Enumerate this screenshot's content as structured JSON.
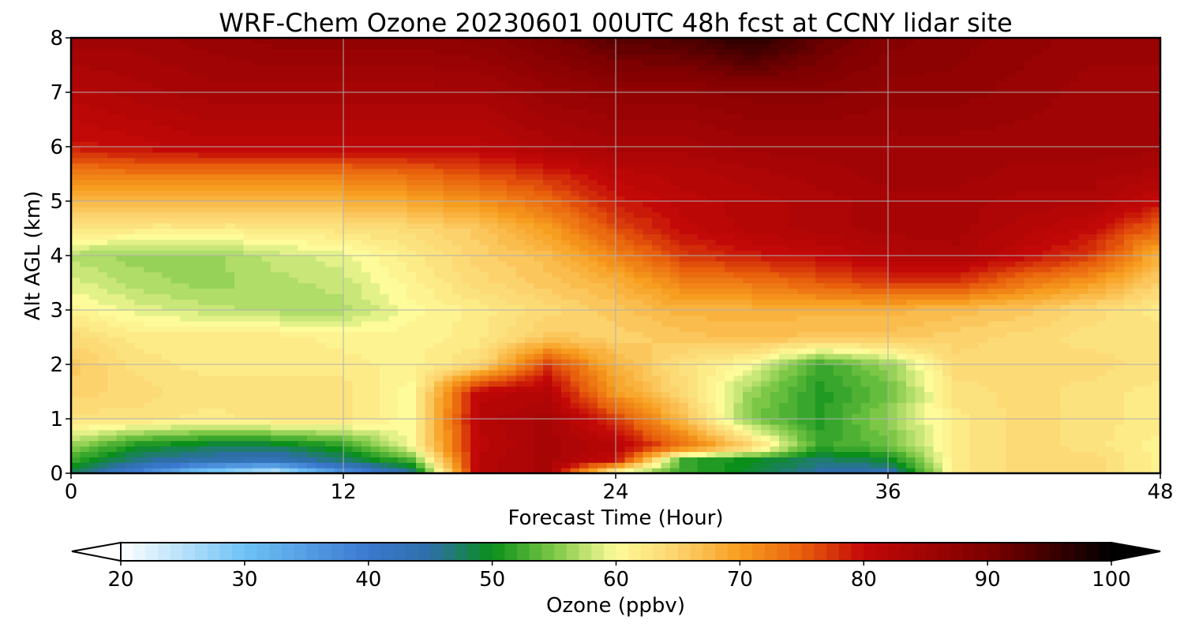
{
  "chart_data": {
    "type": "heatmap",
    "title": "WRF-Chem Ozone  20230601 00UTC 48h fcst at CCNY lidar site",
    "xlabel": "Forecast Time (Hour)",
    "ylabel": "Alt AGL (km)",
    "xlim": [
      0,
      48
    ],
    "ylim": [
      0,
      8
    ],
    "x_ticks": [
      "0",
      "12",
      "24",
      "36",
      "48"
    ],
    "y_ticks": [
      "0",
      "1",
      "2",
      "3",
      "4",
      "5",
      "6",
      "7",
      "8"
    ],
    "grid": true,
    "x_hours": [
      0,
      3,
      6,
      9,
      12,
      15,
      18,
      21,
      24,
      27,
      30,
      33,
      36,
      39,
      42,
      45,
      48
    ],
    "y_km": [
      0,
      0.25,
      0.5,
      1,
      1.5,
      2,
      2.5,
      3,
      3.5,
      4,
      4.5,
      5,
      5.5,
      6,
      7,
      8
    ],
    "ozone_ppbv": [
      [
        48,
        38,
        27,
        22,
        35,
        45,
        82,
        84,
        58,
        52,
        49,
        45,
        43,
        62,
        64,
        64,
        61
      ],
      [
        52,
        46,
        44,
        43,
        47,
        53,
        82,
        84,
        80,
        52,
        50,
        47,
        49,
        62,
        64,
        64,
        61
      ],
      [
        56,
        50,
        48,
        48,
        51,
        60,
        81,
        84,
        82,
        74,
        65,
        52,
        54,
        62,
        64,
        63,
        61
      ],
      [
        63,
        63,
        62,
        63,
        63,
        60,
        82,
        84,
        77,
        67,
        55,
        51,
        56,
        62,
        64,
        63,
        62
      ],
      [
        65,
        64,
        63,
        63,
        63,
        60,
        81,
        82,
        70,
        64,
        56,
        51,
        54,
        63,
        64,
        63,
        62
      ],
      [
        66,
        63,
        62,
        62,
        62,
        61,
        64,
        77,
        68,
        63,
        60,
        52,
        56,
        64,
        64,
        64,
        63
      ],
      [
        64,
        62,
        62,
        62,
        61,
        61,
        62,
        66,
        65,
        66,
        67,
        66,
        66,
        65,
        64,
        63,
        63
      ],
      [
        61,
        59,
        58,
        57,
        57,
        60,
        62,
        64,
        66,
        68,
        68,
        68,
        68,
        67,
        66,
        64,
        62
      ],
      [
        59,
        57,
        56,
        57,
        58,
        61,
        64,
        66,
        68,
        72,
        73,
        75,
        77,
        77,
        73,
        70,
        65
      ],
      [
        57,
        56,
        56,
        58,
        59,
        62,
        65,
        67,
        72,
        77,
        79,
        80,
        82,
        83,
        80,
        77,
        68
      ],
      [
        63,
        62,
        62,
        62,
        63,
        64,
        66,
        70,
        76,
        80,
        82,
        83,
        84,
        84,
        82,
        80,
        74
      ],
      [
        67,
        67,
        67,
        67,
        68,
        69,
        71,
        74,
        79,
        81,
        82,
        83,
        84,
        84,
        83,
        83,
        80
      ],
      [
        72,
        73,
        73,
        73,
        73,
        74,
        76,
        78,
        81,
        82,
        83,
        84,
        85,
        85,
        84,
        84,
        83
      ],
      [
        79,
        80,
        81,
        81,
        81,
        81,
        81,
        83,
        84,
        84,
        85,
        85,
        85,
        85,
        85,
        85,
        85
      ],
      [
        82,
        83,
        84,
        84,
        84,
        84,
        84,
        86,
        87,
        87,
        88,
        88,
        87,
        87,
        86,
        85,
        85
      ],
      [
        85,
        85,
        86,
        87,
        87,
        87,
        88,
        90,
        93,
        94,
        97,
        92,
        89,
        88,
        87,
        86,
        86
      ]
    ],
    "colorbar": {
      "label": "Ozone  (ppbv)",
      "min": 20,
      "max": 100,
      "tick_labels": [
        "20",
        "30",
        "40",
        "50",
        "60",
        "70",
        "80",
        "90",
        "100"
      ],
      "extend": "both",
      "stops": [
        {
          "v": 20,
          "c": "#ffffff"
        },
        {
          "v": 30,
          "c": "#6ec2f5"
        },
        {
          "v": 40,
          "c": "#3a78cf"
        },
        {
          "v": 45,
          "c": "#2e6fa8"
        },
        {
          "v": 50,
          "c": "#0a8f1a"
        },
        {
          "v": 55,
          "c": "#7cc846"
        },
        {
          "v": 60,
          "c": "#fdfb9a"
        },
        {
          "v": 65,
          "c": "#fcd26c"
        },
        {
          "v": 70,
          "c": "#f79d1f"
        },
        {
          "v": 75,
          "c": "#e85f0c"
        },
        {
          "v": 80,
          "c": "#c30808"
        },
        {
          "v": 90,
          "c": "#7e0000"
        },
        {
          "v": 100,
          "c": "#000000"
        }
      ]
    }
  }
}
